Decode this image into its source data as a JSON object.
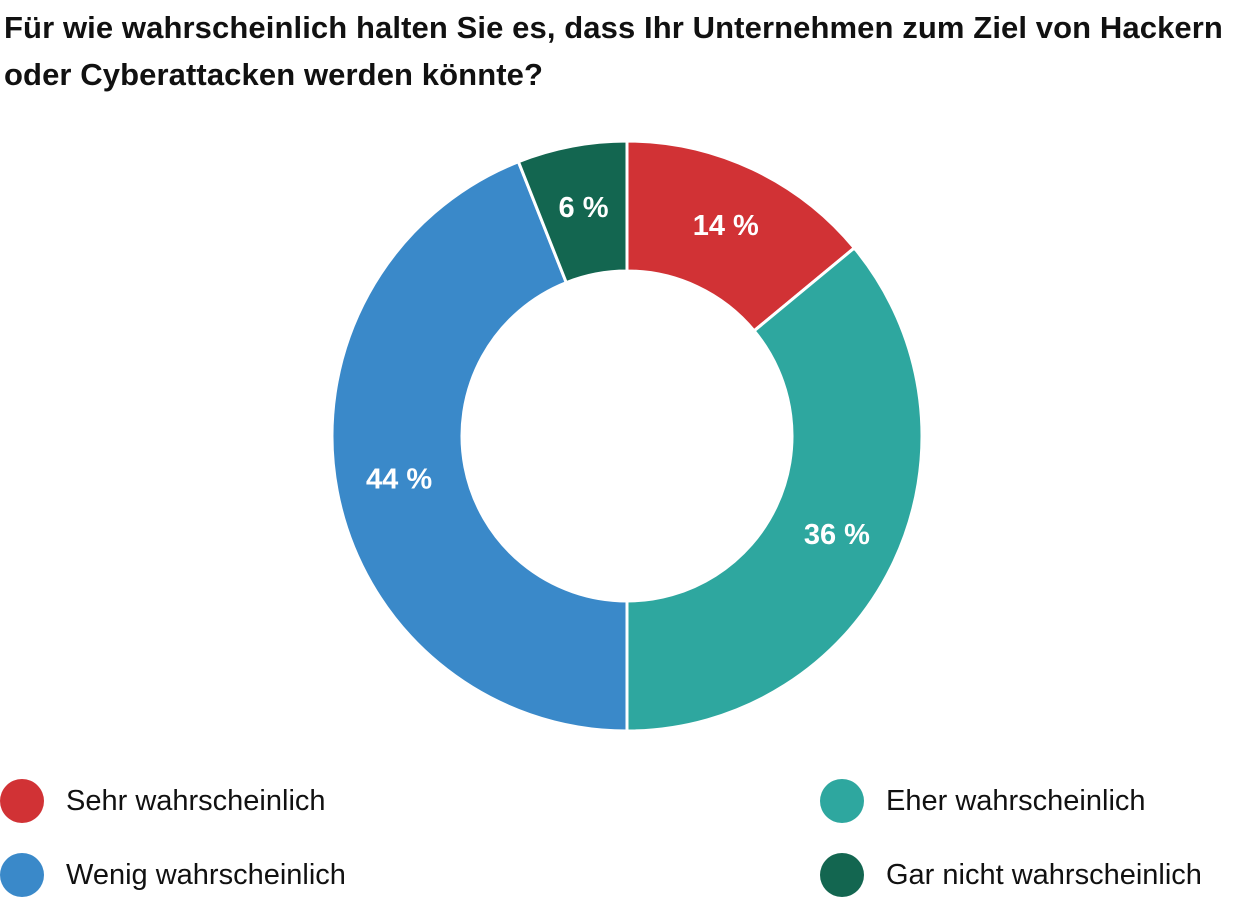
{
  "title": "Für wie wahrscheinlich halten Sie es, dass Ihr Unternehmen zum Ziel von Hackern oder Cyberattacken werden könnte?",
  "chart_data": {
    "type": "pie",
    "title": "Für wie wahrscheinlich halten Sie es, dass Ihr Unternehmen zum Ziel von Hackern oder Cyberattacken werden könnte?",
    "donut": true,
    "categories": [
      "Sehr wahrscheinlich",
      "Eher wahrscheinlich",
      "Wenig wahrscheinlich",
      "Gar nicht wahrscheinlich"
    ],
    "values": [
      14,
      36,
      44,
      6
    ],
    "value_labels": [
      "14 %",
      "36 %",
      "44 %",
      "6 %"
    ],
    "colors": [
      "#d13235",
      "#2ea79f",
      "#3a89c9",
      "#136650"
    ],
    "legend": "bottom"
  },
  "legend": [
    {
      "label": "Sehr wahrscheinlich",
      "color": "#d13235"
    },
    {
      "label": "Eher wahrscheinlich",
      "color": "#2ea79f"
    },
    {
      "label": "Wenig wahrscheinlich",
      "color": "#3a89c9"
    },
    {
      "label": "Gar nicht wahrscheinlich",
      "color": "#136650"
    }
  ]
}
